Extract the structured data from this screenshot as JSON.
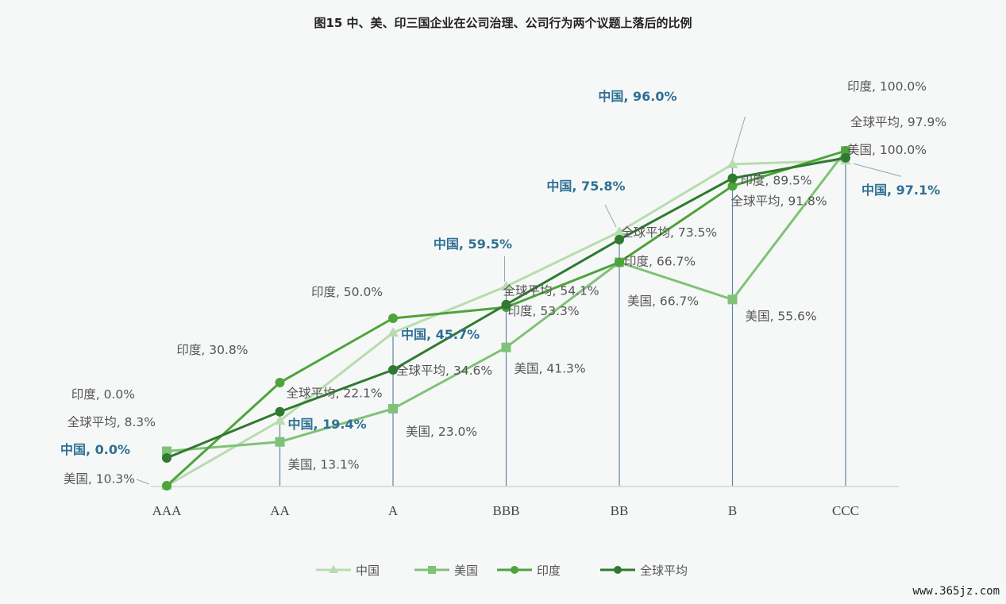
{
  "chart_data": {
    "type": "line",
    "title": "图15 中、美、印三国企业在公司治理、公司行为两个议题上落后的比例",
    "categories": [
      "AAA",
      "AA",
      "A",
      "BBB",
      "BB",
      "B",
      "CCC"
    ],
    "ylim": [
      0,
      100
    ],
    "legend_position": "bottom",
    "grid": false,
    "series": [
      {
        "name": "中国",
        "marker": "triangle",
        "color": "#b9dbb0",
        "values": [
          0.0,
          19.4,
          45.7,
          59.5,
          75.8,
          96.0,
          97.1
        ],
        "labels": [
          "中国, 0.0%",
          "中国, 19.4%",
          "中国, 45.7%",
          "中国, 59.5%",
          "中国, 75.8%",
          "中国, 96.0%",
          "中国, 97.1%"
        ]
      },
      {
        "name": "美国",
        "marker": "square",
        "color": "#7fc277",
        "values": [
          10.3,
          13.1,
          23.0,
          41.3,
          66.7,
          55.6,
          100.0
        ],
        "labels": [
          "美国, 10.3%",
          "美国, 13.1%",
          "美国, 23.0%",
          "美国, 41.3%",
          "美国, 66.7%",
          "美国, 55.6%",
          "美国, 100.0%"
        ]
      },
      {
        "name": "印度",
        "marker": "circle",
        "color": "#4ea33c",
        "values": [
          0.0,
          30.8,
          50.0,
          53.3,
          66.7,
          89.5,
          100.0
        ],
        "labels": [
          "印度, 0.0%",
          "印度, 30.8%",
          "印度, 50.0%",
          "印度, 53.3%",
          "印度, 66.7%",
          "印度, 89.5%",
          "印度, 100.0%"
        ]
      },
      {
        "name": "全球平均",
        "marker": "circle",
        "color": "#2f7a30",
        "values": [
          8.3,
          22.1,
          34.6,
          54.1,
          73.5,
          91.8,
          97.9
        ],
        "labels": [
          "全球平均, 8.3%",
          "全球平均, 22.1%",
          "全球平均, 34.6%",
          "全球平均, 54.1%",
          "全球平均, 73.5%",
          "全球平均, 91.8%",
          "全球平均, 97.9%"
        ]
      }
    ]
  },
  "colors": {
    "china_label": "#2f6f94",
    "drop_line": "#2f5f8a",
    "axis": "#cfd6d3"
  },
  "watermark": "www.365jz.com"
}
